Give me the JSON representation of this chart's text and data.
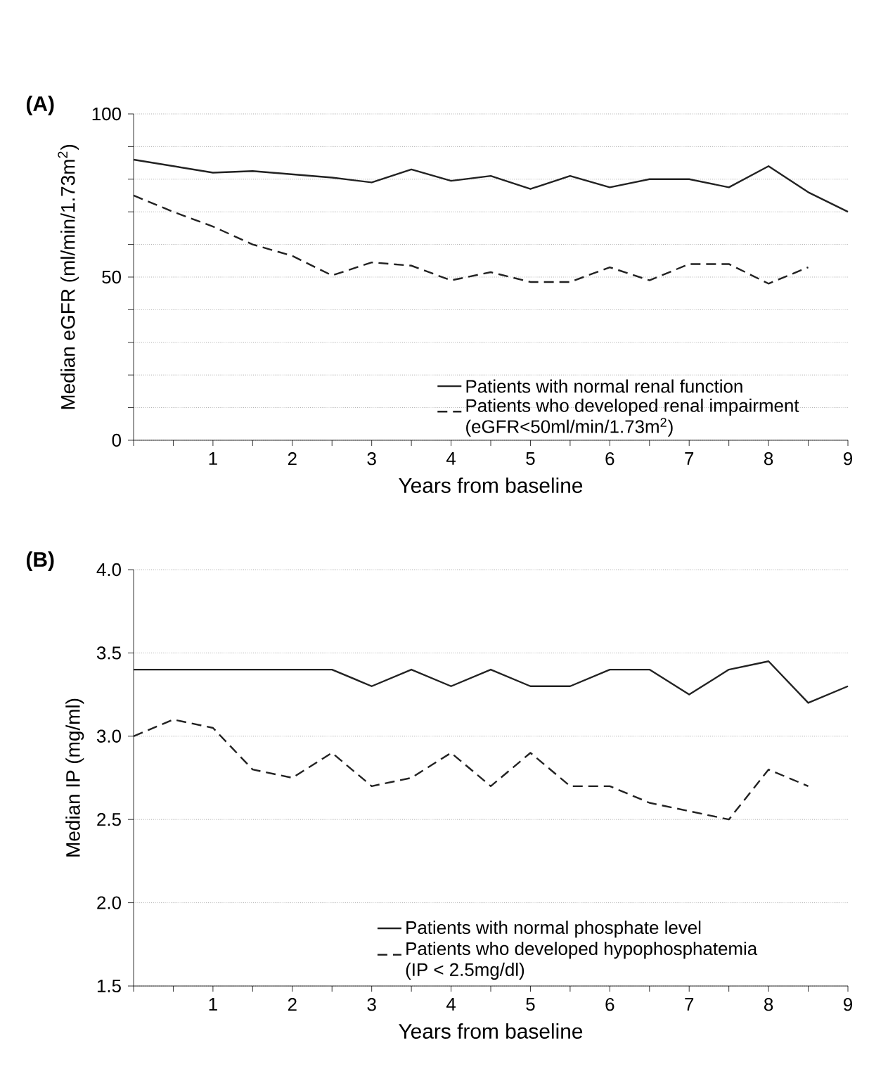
{
  "chart_data": [
    {
      "type": "line",
      "title": "(A)",
      "xlabel": "Years from baseline",
      "ylabel": "Median eGFR  (ml/min/1.73m$^{2}$)",
      "x": [
        0,
        0.5,
        1,
        1.5,
        2,
        2.5,
        3,
        3.5,
        4,
        4.5,
        5,
        5.5,
        6,
        6.5,
        7,
        7.5,
        8,
        8.5,
        9
      ],
      "series": [
        {
          "name": "Patients with normal renal function",
          "color": "#222222",
          "line_style": "solid",
          "values": [
            86,
            84,
            82,
            82.5,
            81.5,
            80.5,
            79,
            83,
            79.5,
            81,
            77,
            81,
            77.5,
            80,
            80,
            77.5,
            84,
            76,
            70
          ]
        },
        {
          "name": "Patients who developed renal impairment (eGFR<50ml/min/1.73m$^{2}$)",
          "color": "#222222",
          "line_style": "dashed",
          "values": [
            75,
            70,
            65.5,
            60,
            56.5,
            50.5,
            54.5,
            53.5,
            49,
            51.5,
            48.5,
            48.5,
            53,
            49,
            54,
            54,
            48,
            53,
            null
          ]
        }
      ],
      "xlim": [
        0,
        9
      ],
      "ylim": [
        0,
        100
      ],
      "xticks": [
        {
          "value": 0,
          "label": null
        },
        {
          "value": 0.5,
          "label": null
        },
        1,
        {
          "value": 1.5,
          "label": null
        },
        2,
        {
          "value": 2.5,
          "label": null
        },
        3,
        {
          "value": 3.5,
          "label": null
        },
        4,
        {
          "value": 4.5,
          "label": null
        },
        5,
        {
          "value": 5.5,
          "label": null
        },
        6,
        {
          "value": 6.5,
          "label": null
        },
        7,
        {
          "value": 7.5,
          "label": null
        },
        8,
        {
          "value": 8.5,
          "label": null
        },
        9
      ],
      "yticks": [
        0,
        {
          "value": 10,
          "label": null
        },
        {
          "value": 20,
          "label": null
        },
        {
          "value": 30,
          "label": null
        },
        {
          "value": 40,
          "label": null
        },
        50,
        {
          "value": 60,
          "label": null
        },
        {
          "value": 70,
          "label": null
        },
        {
          "value": 80,
          "label": null
        },
        {
          "value": 90,
          "label": null
        },
        100
      ],
      "grid": "y",
      "legend": "bottom right",
      "marker": "none"
    },
    {
      "type": "line",
      "title": "(B)",
      "xlabel": "Years from baseline",
      "ylabel": "Median IP (mg/ml)",
      "x": [
        0,
        0.5,
        1,
        1.5,
        2,
        2.5,
        3,
        3.5,
        4,
        4.5,
        5,
        5.5,
        6,
        6.5,
        7,
        7.5,
        8,
        8.5,
        9
      ],
      "series": [
        {
          "name": "Patients with normal phosphate level",
          "color": "#222222",
          "line_style": "solid",
          "values": [
            3.4,
            3.4,
            3.4,
            3.4,
            3.4,
            3.4,
            3.3,
            3.4,
            3.3,
            3.4,
            3.3,
            3.3,
            3.4,
            3.4,
            3.25,
            3.4,
            3.45,
            3.2,
            3.3
          ]
        },
        {
          "name": "Patients who developed hypophosphatemia (IP < 2.5mg/dl)",
          "color": "#222222",
          "line_style": "dashed",
          "values": [
            3.0,
            3.1,
            3.05,
            2.8,
            2.75,
            2.9,
            2.7,
            2.75,
            2.9,
            2.7,
            2.9,
            2.7,
            2.7,
            2.6,
            2.55,
            2.5,
            2.8,
            2.7,
            null
          ]
        }
      ],
      "xlim": [
        0,
        9
      ],
      "ylim": [
        1.5,
        4.0
      ],
      "xticks": [
        {
          "value": 0,
          "label": null
        },
        {
          "value": 0.5,
          "label": null
        },
        1,
        {
          "value": 1.5,
          "label": null
        },
        2,
        {
          "value": 2.5,
          "label": null
        },
        3,
        {
          "value": 3.5,
          "label": null
        },
        4,
        {
          "value": 4.5,
          "label": null
        },
        5,
        {
          "value": 5.5,
          "label": null
        },
        6,
        {
          "value": 6.5,
          "label": null
        },
        7,
        {
          "value": 7.5,
          "label": null
        },
        8,
        {
          "value": 8.5,
          "label": null
        },
        9
      ],
      "yticks": [
        {
          "value": 1.5,
          "label": "1.5"
        },
        {
          "value": 2.0,
          "label": "2.0"
        },
        {
          "value": 2.5,
          "label": "2.5"
        },
        {
          "value": 3.0,
          "label": "3.0"
        },
        {
          "value": 3.5,
          "label": "3.5"
        },
        {
          "value": 4.0,
          "label": "4.0"
        }
      ],
      "grid": "y",
      "legend": "bottom",
      "marker": "none"
    }
  ]
}
